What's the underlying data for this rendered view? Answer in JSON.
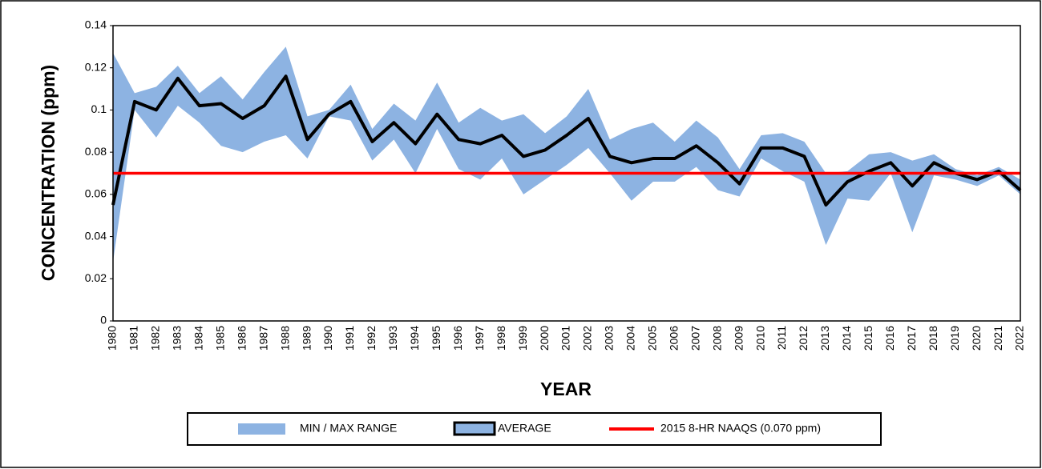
{
  "chart_data": {
    "type": "line",
    "y_label": "CONCENTRATION (ppm)",
    "x_label": "YEAR",
    "categories": [
      "1980",
      "1981",
      "1982",
      "1983",
      "1984",
      "1985",
      "1986",
      "1987",
      "1988",
      "1989",
      "1990",
      "1991",
      "1992",
      "1993",
      "1994",
      "1995",
      "1996",
      "1997",
      "1998",
      "1999",
      "2000",
      "2001",
      "2002",
      "2003",
      "2004",
      "2005",
      "2006",
      "2007",
      "2008",
      "2009",
      "2010",
      "2011",
      "2012",
      "2013",
      "2014",
      "2015",
      "2016",
      "2017",
      "2018",
      "2019",
      "2020",
      "2021",
      "2022"
    ],
    "series": [
      {
        "name": "MIN / MAX RANGE",
        "color": "#8db3e2",
        "upper": [
          0.127,
          0.108,
          0.111,
          0.121,
          0.108,
          0.116,
          0.105,
          0.118,
          0.13,
          0.097,
          0.1,
          0.112,
          0.091,
          0.103,
          0.095,
          0.113,
          0.094,
          0.101,
          0.095,
          0.098,
          0.089,
          0.097,
          0.11,
          0.086,
          0.091,
          0.094,
          0.085,
          0.095,
          0.087,
          0.072,
          0.088,
          0.089,
          0.085,
          0.07,
          0.071,
          0.079,
          0.08,
          0.076,
          0.079,
          0.072,
          0.069,
          0.073,
          0.067
        ],
        "lower": [
          0.028,
          0.1,
          0.087,
          0.102,
          0.094,
          0.083,
          0.08,
          0.085,
          0.088,
          0.077,
          0.097,
          0.095,
          0.076,
          0.086,
          0.07,
          0.091,
          0.072,
          0.067,
          0.077,
          0.06,
          0.067,
          0.074,
          0.082,
          0.07,
          0.057,
          0.066,
          0.066,
          0.073,
          0.062,
          0.059,
          0.077,
          0.071,
          0.066,
          0.036,
          0.058,
          0.057,
          0.07,
          0.042,
          0.069,
          0.067,
          0.064,
          0.069,
          0.06
        ]
      },
      {
        "name": "AVERAGE",
        "color": "#000000",
        "values": [
          0.055,
          0.104,
          0.1,
          0.115,
          0.102,
          0.103,
          0.096,
          0.102,
          0.116,
          0.086,
          0.098,
          0.104,
          0.085,
          0.094,
          0.084,
          0.098,
          0.086,
          0.084,
          0.088,
          0.078,
          0.081,
          0.088,
          0.096,
          0.078,
          0.075,
          0.077,
          0.077,
          0.083,
          0.075,
          0.065,
          0.082,
          0.082,
          0.078,
          0.055,
          0.066,
          0.071,
          0.075,
          0.064,
          0.075,
          0.07,
          0.067,
          0.071,
          0.062
        ]
      },
      {
        "name": "2015 8-HR NAAQS (0.070 ppm)",
        "color": "#ff0000",
        "value": 0.07
      }
    ],
    "ylim": [
      0,
      0.14
    ],
    "yticks": [
      0,
      0.02,
      0.04,
      0.06,
      0.08,
      0.1,
      0.12,
      0.14
    ],
    "grid": false
  }
}
